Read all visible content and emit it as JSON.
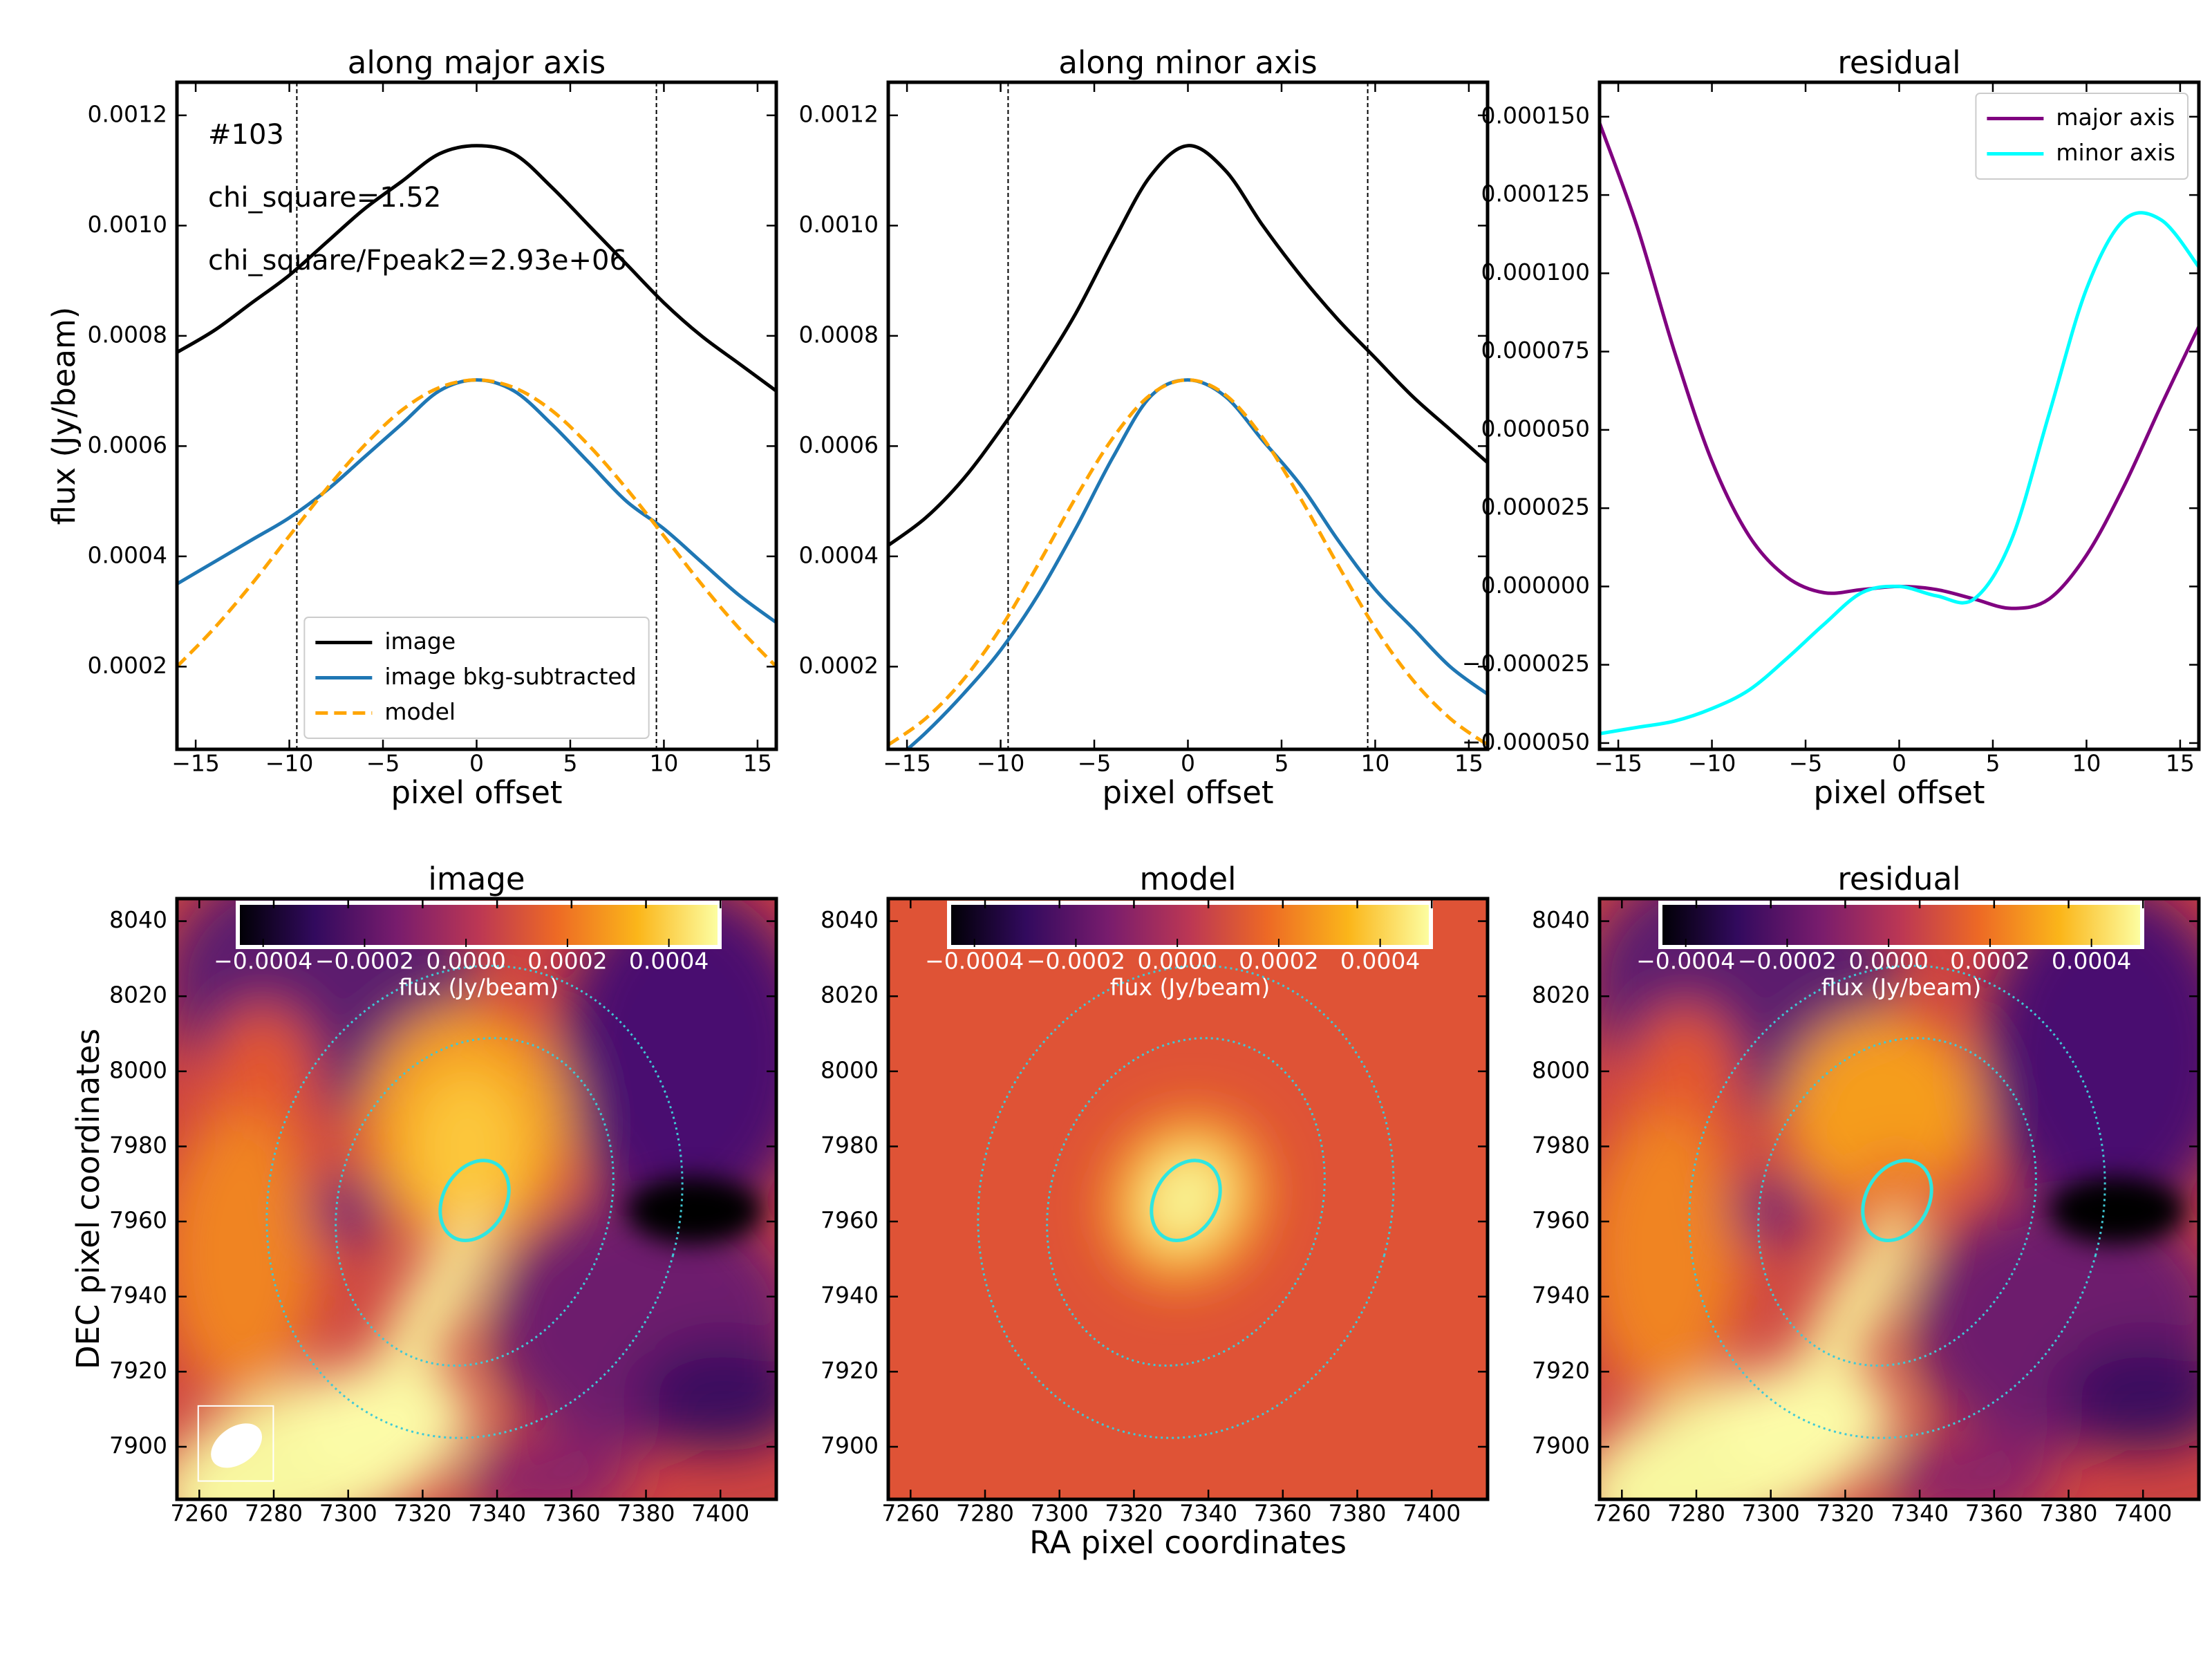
{
  "chart_data": [
    {
      "type": "line",
      "title": "along major axis",
      "xlabel": "pixel offset",
      "ylabel": "flux (Jy/beam)",
      "x": [
        -16,
        -14,
        -12,
        -10,
        -8,
        -6,
        -4,
        -2,
        0,
        2,
        4,
        6,
        8,
        10,
        12,
        14,
        16
      ],
      "xlim": [
        -16,
        16
      ],
      "ylim": [
        5e-05,
        0.00126
      ],
      "xticks": [
        {
          "value": -15,
          "label": "−15"
        },
        {
          "value": -10,
          "label": "−10"
        },
        {
          "value": -5,
          "label": "−5"
        },
        0,
        5,
        10,
        15
      ],
      "yticks": [
        0.0002,
        0.0004,
        0.0006,
        0.0008,
        {
          "value": 0.001,
          "label": "0.0010"
        },
        0.0012
      ],
      "vlines": [
        -9.6,
        9.6
      ],
      "annotations": [
        "#103",
        "chi_square=1.52",
        "chi_square/Fpeak2=2.93e+06"
      ],
      "legend": "lower center",
      "series": [
        {
          "name": "image",
          "color": "#000000",
          "style": "solid",
          "values": [
            0.00077,
            0.00081,
            0.00086,
            0.00091,
            0.00097,
            0.00103,
            0.00108,
            0.00113,
            0.001145,
            0.00113,
            0.00107,
            0.001,
            0.00093,
            0.00086,
            0.0008,
            0.00075,
            0.0007
          ]
        },
        {
          "name": "image bkg-subtracted",
          "color": "#1f77b4",
          "style": "solid",
          "values": [
            0.00035,
            0.00039,
            0.00043,
            0.00047,
            0.00052,
            0.00058,
            0.00064,
            0.0007,
            0.00072,
            0.0007,
            0.00064,
            0.00057,
            0.0005,
            0.00045,
            0.00039,
            0.00033,
            0.00028
          ]
        },
        {
          "name": "model",
          "color": "#ffa500",
          "style": "dashed",
          "values": [
            0.0002,
            0.00027,
            0.00035,
            0.000437,
            0.000523,
            0.000601,
            0.000665,
            0.000706,
            0.00072,
            0.000706,
            0.000665,
            0.000601,
            0.000523,
            0.000437,
            0.00035,
            0.00027,
            0.0002
          ]
        }
      ]
    },
    {
      "type": "line",
      "title": "along minor axis",
      "xlabel": "pixel offset",
      "x": [
        -16,
        -14,
        -12,
        -10,
        -8,
        -6,
        -4,
        -2,
        0,
        2,
        4,
        6,
        8,
        10,
        12,
        14,
        16
      ],
      "xlim": [
        -16,
        16
      ],
      "ylim": [
        5e-05,
        0.00126
      ],
      "xticks": [
        {
          "value": -15,
          "label": "−15"
        },
        {
          "value": -10,
          "label": "−10"
        },
        {
          "value": -5,
          "label": "−5"
        },
        0,
        5,
        10,
        15
      ],
      "yticks": [
        0.0002,
        0.0004,
        0.0006,
        0.0008,
        {
          "value": 0.001,
          "label": "0.0010"
        },
        0.0012
      ],
      "vlines": [
        -9.6,
        9.6
      ],
      "series": [
        {
          "color": "#000000",
          "style": "solid",
          "values": [
            0.00042,
            0.00047,
            0.00054,
            0.00063,
            0.00073,
            0.00084,
            0.00097,
            0.00109,
            0.001145,
            0.0011,
            0.001,
            0.00091,
            0.00083,
            0.00076,
            0.00069,
            0.00063,
            0.00057
          ]
        },
        {
          "color": "#1f77b4",
          "style": "solid",
          "values": [
            2e-05,
            8e-05,
            0.00015,
            0.00023,
            0.00033,
            0.00045,
            0.00058,
            0.00069,
            0.00072,
            0.00069,
            0.00061,
            0.00053,
            0.00043,
            0.00034,
            0.00027,
            0.0002,
            0.00015
          ]
        },
        {
          "color": "#ffa500",
          "style": "dashed",
          "values": [
            5.8e-05,
            0.000106,
            0.000176,
            0.00027,
            0.000385,
            0.000506,
            0.000615,
            0.000693,
            0.00072,
            0.000693,
            0.000615,
            0.000506,
            0.000385,
            0.00027,
            0.000176,
            0.000106,
            5.8e-05
          ]
        }
      ]
    },
    {
      "type": "line",
      "title": "residual",
      "xlabel": "pixel offset",
      "x": [
        -16,
        -14,
        -12,
        -10,
        -8,
        -6,
        -4,
        -2,
        0,
        2,
        4,
        6,
        8,
        10,
        12,
        14,
        16
      ],
      "xlim": [
        -16,
        16
      ],
      "ylim": [
        -5.2e-05,
        0.000161
      ],
      "xticks": [
        {
          "value": -15,
          "label": "−15"
        },
        {
          "value": -10,
          "label": "−10"
        },
        {
          "value": -5,
          "label": "−5"
        },
        0,
        5,
        10,
        15
      ],
      "yticks": [
        {
          "value": -5e-05,
          "label": "−0.000050"
        },
        {
          "value": -2.5e-05,
          "label": "−0.000025"
        },
        {
          "value": 0,
          "label": "0.000000"
        },
        2.5e-05,
        {
          "value": 5e-05,
          "label": "0.000050"
        },
        7.5e-05,
        {
          "value": 0.0001,
          "label": "0.000100"
        },
        0.000125,
        {
          "value": 0.00015,
          "label": "0.000150"
        }
      ],
      "legend": "upper right",
      "series": [
        {
          "name": "major axis",
          "color": "#800080",
          "style": "solid",
          "values": [
            0.000148,
            0.000115,
            7.5e-05,
            4e-05,
            1.6e-05,
            3e-06,
            -2e-06,
            -1e-06,
            0,
            -1e-06,
            -4e-06,
            -7e-06,
            -4e-06,
            1e-05,
            3.2e-05,
            5.8e-05,
            8.3e-05
          ]
        },
        {
          "name": "minor axis",
          "color": "#00ffff",
          "style": "solid",
          "values": [
            -4.7e-05,
            -4.5e-05,
            -4.3e-05,
            -3.9e-05,
            -3.3e-05,
            -2.3e-05,
            -1.2e-05,
            -2e-06,
            0,
            -3e-06,
            -4e-06,
            1.5e-05,
            5.5e-05,
            9.5e-05,
            0.000117,
            0.000117,
            0.000102
          ]
        }
      ]
    },
    {
      "type": "image",
      "title": "image",
      "ylabel": "DEC pixel coordinates",
      "xlim": [
        7254,
        7415
      ],
      "ylim": [
        7886,
        8046
      ],
      "xticks": [
        7260,
        7280,
        7300,
        7320,
        7340,
        7360,
        7380,
        7400
      ],
      "yticks": [
        7900,
        7920,
        7940,
        7960,
        7980,
        8000,
        8020,
        8040
      ],
      "colorbar": {
        "label": "flux (Jy/beam)",
        "clim": [
          -0.00045,
          0.0005
        ],
        "ticks": [
          {
            "value": -0.0004,
            "label": "−0.0004"
          },
          {
            "value": -0.0002,
            "label": "−0.0002"
          },
          {
            "value": 0,
            "label": "0.0000"
          },
          {
            "value": 0.0002,
            "label": "0.0002"
          },
          {
            "value": 0.0004,
            "label": "0.0004"
          }
        ]
      }
    },
    {
      "type": "image",
      "title": "model",
      "xlabel": "RA pixel coordinates",
      "xlim": [
        7254,
        7415
      ],
      "ylim": [
        7886,
        8046
      ],
      "xticks": [
        7260,
        7280,
        7300,
        7320,
        7340,
        7360,
        7380,
        7400
      ],
      "yticks": [
        7900,
        7920,
        7940,
        7960,
        7980,
        8000,
        8020,
        8040
      ],
      "colorbar": {
        "label": "flux (Jy/beam)",
        "clim": [
          -0.00045,
          0.0005
        ],
        "ticks": [
          {
            "value": -0.0004,
            "label": "−0.0004"
          },
          {
            "value": -0.0002,
            "label": "−0.0002"
          },
          {
            "value": 0,
            "label": "0.0000"
          },
          {
            "value": 0.0002,
            "label": "0.0002"
          },
          {
            "value": 0.0004,
            "label": "0.0004"
          }
        ]
      }
    },
    {
      "type": "image",
      "title": "residual",
      "xlim": [
        7254,
        7415
      ],
      "ylim": [
        7886,
        8046
      ],
      "xticks": [
        7260,
        7280,
        7300,
        7320,
        7340,
        7360,
        7380,
        7400
      ],
      "yticks": [
        7900,
        7920,
        7940,
        7960,
        7980,
        8000,
        8020,
        8040
      ],
      "colorbar": {
        "label": "flux (Jy/beam)",
        "clim": [
          -0.00045,
          0.0005
        ],
        "ticks": [
          {
            "value": -0.0004,
            "label": "−0.0004"
          },
          {
            "value": -0.0002,
            "label": "−0.0002"
          },
          {
            "value": 0,
            "label": "0.0000"
          },
          {
            "value": 0.0002,
            "label": "0.0002"
          },
          {
            "value": 0.0004,
            "label": "0.0004"
          }
        ]
      }
    }
  ]
}
